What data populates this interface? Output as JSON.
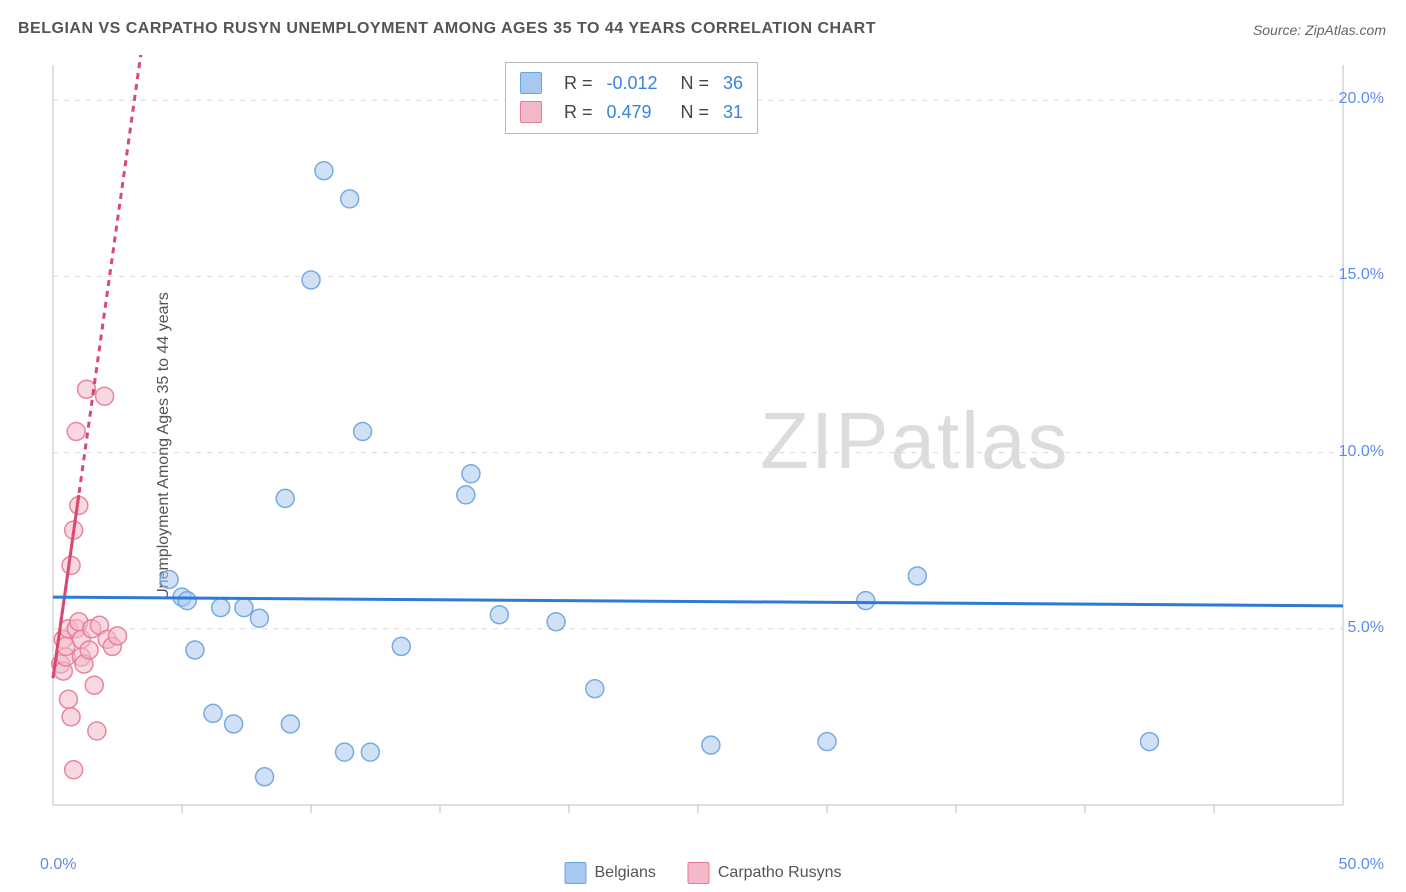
{
  "title": "BELGIAN VS CARPATHO RUSYN UNEMPLOYMENT AMONG AGES 35 TO 44 YEARS CORRELATION CHART",
  "source": "Source: ZipAtlas.com",
  "ylabel": "Unemployment Among Ages 35 to 44 years",
  "watermark": "ZIPatlas",
  "chart": {
    "type": "scatter",
    "xlim": [
      0,
      50
    ],
    "ylim": [
      0,
      21
    ],
    "x_origin_label": "0.0%",
    "x_max_label": "50.0%",
    "x_ticks_minor": [
      5,
      10,
      15,
      20,
      25,
      30,
      35,
      40,
      45
    ],
    "y_gridlines": [
      5,
      10,
      15,
      20
    ],
    "y_tick_labels": [
      "5.0%",
      "10.0%",
      "15.0%",
      "20.0%"
    ],
    "grid_color": "#d9d9d9",
    "axis_color": "#bfbfbf",
    "background_color": "#ffffff",
    "marker_radius": 9,
    "marker_opacity": 0.55,
    "series": [
      {
        "name": "Belgians",
        "color_fill": "#a9c8ef",
        "color_stroke": "#6aa3e0",
        "trend": {
          "slope": -0.005,
          "intercept": 5.9,
          "x0": 0,
          "x1": 50,
          "color": "#2e7bd6",
          "width": 3,
          "dash": ""
        },
        "points": [
          [
            4.5,
            6.4
          ],
          [
            5.0,
            5.9
          ],
          [
            5.2,
            5.8
          ],
          [
            5.5,
            4.4
          ],
          [
            6.2,
            2.6
          ],
          [
            6.5,
            5.6
          ],
          [
            7.0,
            2.3
          ],
          [
            7.4,
            5.6
          ],
          [
            8.0,
            5.3
          ],
          [
            8.2,
            0.8
          ],
          [
            9.0,
            8.7
          ],
          [
            9.2,
            2.3
          ],
          [
            10.0,
            14.9
          ],
          [
            10.5,
            18.0
          ],
          [
            11.3,
            1.5
          ],
          [
            11.5,
            17.2
          ],
          [
            12.0,
            10.6
          ],
          [
            12.3,
            1.5
          ],
          [
            13.5,
            4.5
          ],
          [
            16.0,
            8.8
          ],
          [
            16.2,
            9.4
          ],
          [
            17.3,
            5.4
          ],
          [
            19.5,
            5.2
          ],
          [
            21.0,
            3.3
          ],
          [
            25.5,
            1.7
          ],
          [
            30.0,
            1.8
          ],
          [
            31.5,
            5.8
          ],
          [
            33.5,
            6.5
          ],
          [
            42.5,
            1.8
          ]
        ]
      },
      {
        "name": "Carpatho Rusyns",
        "color_fill": "#f4b9c6",
        "color_stroke": "#e57a97",
        "trend": {
          "slope": 5.2,
          "intercept": 3.6,
          "x0": 0,
          "x1": 4.3,
          "color": "#d94a72",
          "width": 3,
          "dash": "6,5"
        },
        "trend_solid_end": 1.0,
        "points": [
          [
            0.3,
            4.0
          ],
          [
            0.4,
            3.8
          ],
          [
            0.4,
            4.7
          ],
          [
            0.5,
            4.2
          ],
          [
            0.5,
            4.5
          ],
          [
            0.6,
            5.0
          ],
          [
            0.6,
            3.0
          ],
          [
            0.7,
            6.8
          ],
          [
            0.7,
            2.5
          ],
          [
            0.8,
            7.8
          ],
          [
            0.8,
            1.0
          ],
          [
            0.9,
            10.6
          ],
          [
            0.9,
            5.0
          ],
          [
            1.0,
            5.2
          ],
          [
            1.0,
            8.5
          ],
          [
            1.1,
            4.7
          ],
          [
            1.1,
            4.2
          ],
          [
            1.2,
            4.0
          ],
          [
            1.3,
            11.8
          ],
          [
            1.4,
            4.4
          ],
          [
            1.5,
            5.0
          ],
          [
            1.6,
            3.4
          ],
          [
            1.7,
            2.1
          ],
          [
            1.8,
            5.1
          ],
          [
            2.0,
            11.6
          ],
          [
            2.1,
            4.7
          ],
          [
            2.3,
            4.5
          ],
          [
            2.5,
            4.8
          ]
        ]
      }
    ]
  },
  "stats_box": {
    "rows": [
      {
        "swatch_fill": "#a9c8ef",
        "swatch_stroke": "#6aa3e0",
        "r_label": "R =",
        "r_value": "-0.012",
        "n_label": "N =",
        "n_value": "36"
      },
      {
        "swatch_fill": "#f4b9c6",
        "swatch_stroke": "#e57a97",
        "r_label": "R =",
        "r_value": "0.479",
        "n_label": "N =",
        "n_value": "31"
      }
    ]
  },
  "bottom_legend": [
    {
      "swatch_fill": "#a9c8ef",
      "swatch_stroke": "#6aa3e0",
      "label": "Belgians"
    },
    {
      "swatch_fill": "#f4b9c6",
      "swatch_stroke": "#e57a97",
      "label": "Carpatho Rusyns"
    }
  ]
}
